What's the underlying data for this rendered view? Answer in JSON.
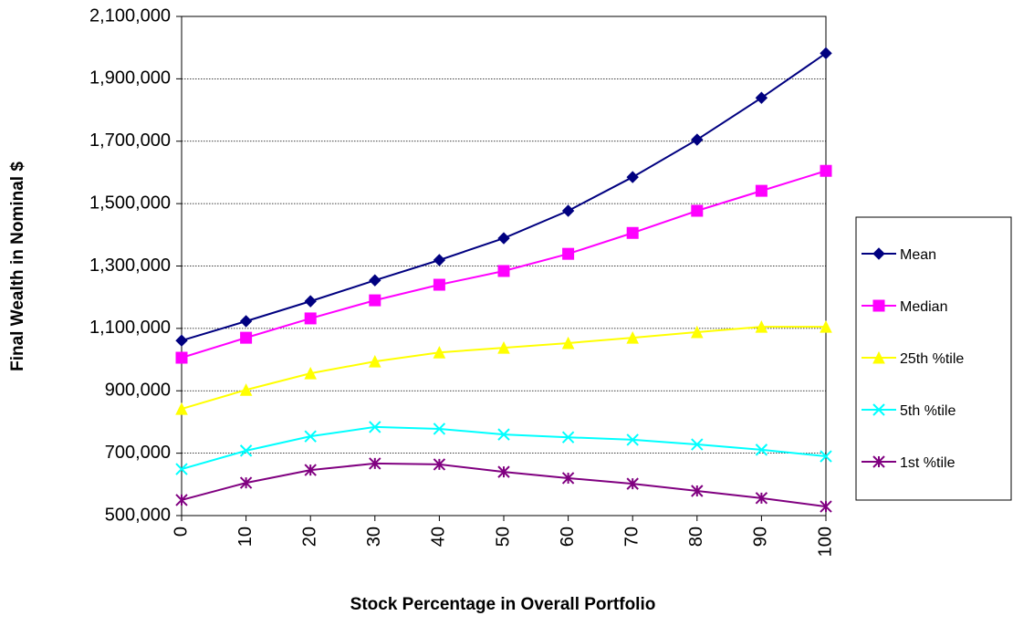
{
  "chart_data": {
    "type": "line",
    "y_label": "Final Wealth in Nominal $",
    "x_label": "Stock Percentage in Overall Portfolio",
    "x": [
      0,
      10,
      20,
      30,
      40,
      50,
      60,
      70,
      80,
      90,
      100
    ],
    "xlim": [
      0,
      100
    ],
    "xticks": [
      0,
      10,
      20,
      30,
      40,
      50,
      60,
      70,
      80,
      90,
      100
    ],
    "ylim": [
      500000,
      2100000
    ],
    "yticks": [
      {
        "value": 500000,
        "label": "500,000"
      },
      {
        "value": 700000,
        "label": "700,000"
      },
      {
        "value": 900000,
        "label": "900,000"
      },
      {
        "value": 1100000,
        "label": "1,100,000"
      },
      {
        "value": 1300000,
        "label": "1,300,000"
      },
      {
        "value": 1500000,
        "label": "1,500,000"
      },
      {
        "value": 1700000,
        "label": "1,700,000"
      },
      {
        "value": 1900000,
        "label": "1,900,000"
      },
      {
        "value": 2100000,
        "label": "2,100,000"
      }
    ],
    "grid": true,
    "legend": "right",
    "series": [
      {
        "name": "Mean",
        "color": "#000080",
        "marker": "diamond",
        "values": [
          1061000,
          1123000,
          1187000,
          1254000,
          1319000,
          1389000,
          1477000,
          1585000,
          1705000,
          1839000,
          1982000
        ]
      },
      {
        "name": "Median",
        "color": "#ff00ff",
        "marker": "square",
        "values": [
          1006000,
          1070000,
          1132000,
          1190000,
          1240000,
          1284000,
          1339000,
          1406000,
          1477000,
          1541000,
          1605000
        ]
      },
      {
        "name": "25th %tile",
        "color": "#ffff00",
        "marker": "triangle",
        "values": [
          842000,
          903000,
          956000,
          994000,
          1023000,
          1038000,
          1053000,
          1070000,
          1088000,
          1105000,
          1105000
        ]
      },
      {
        "name": "5th %tile",
        "color": "#00ffff",
        "marker": "x",
        "values": [
          649000,
          708000,
          754000,
          784000,
          778000,
          760000,
          751000,
          743000,
          728000,
          711000,
          690000
        ]
      },
      {
        "name": "1st %tile",
        "color": "#800080",
        "marker": "star",
        "values": [
          550000,
          605000,
          646000,
          667000,
          664000,
          640000,
          620000,
          602000,
          579000,
          556000,
          529000
        ]
      }
    ]
  }
}
